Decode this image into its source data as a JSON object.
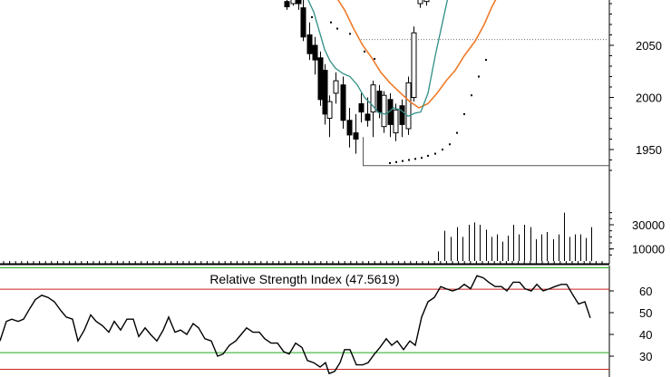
{
  "colors": {
    "background": "#ffffff",
    "candle_up": "#ffffff",
    "candle_down": "#000000",
    "ma_fast": "#2f8f86",
    "ma_slow": "#f07b2a",
    "rsi_line": "#000000",
    "rsi_upper_band": "#cc2222",
    "rsi_lower_band": "#22aa22",
    "rsi_border_band": "#22aa22"
  },
  "chart_data": [
    {
      "type": "candlestick",
      "panel": "price",
      "title": "",
      "ylim": [
        1920,
        2095
      ],
      "y_ticks": [
        1950,
        2000,
        2050
      ],
      "support_level": 1935,
      "dotted_levels": [
        2056,
        2095
      ],
      "candles": [
        {
          "o": 2092,
          "h": 2098,
          "l": 2084,
          "c": 2087
        },
        {
          "o": 2090,
          "h": 2098,
          "l": 2088,
          "c": 2096
        },
        {
          "o": 2094,
          "h": 2099,
          "l": 2084,
          "c": 2090
        },
        {
          "o": 2086,
          "h": 2096,
          "l": 2054,
          "c": 2058
        },
        {
          "o": 2060,
          "h": 2072,
          "l": 2036,
          "c": 2042
        },
        {
          "o": 2050,
          "h": 2058,
          "l": 2022,
          "c": 2036
        },
        {
          "o": 2038,
          "h": 2044,
          "l": 1992,
          "c": 1998
        },
        {
          "o": 2026,
          "h": 2032,
          "l": 1974,
          "c": 1984
        },
        {
          "o": 1980,
          "h": 2002,
          "l": 1962,
          "c": 1996
        },
        {
          "o": 2004,
          "h": 2024,
          "l": 1994,
          "c": 2016
        },
        {
          "o": 2012,
          "h": 2020,
          "l": 1970,
          "c": 1978
        },
        {
          "o": 1978,
          "h": 1990,
          "l": 1952,
          "c": 1964
        },
        {
          "o": 1966,
          "h": 1984,
          "l": 1946,
          "c": 1960
        },
        {
          "o": 1994,
          "h": 2004,
          "l": 1976,
          "c": 1986
        },
        {
          "o": 1984,
          "h": 2000,
          "l": 1972,
          "c": 1978
        },
        {
          "o": 1986,
          "h": 2016,
          "l": 1962,
          "c": 2012
        },
        {
          "o": 2006,
          "h": 2012,
          "l": 1980,
          "c": 1986
        },
        {
          "o": 1972,
          "h": 2006,
          "l": 1966,
          "c": 2002
        },
        {
          "o": 1998,
          "h": 2004,
          "l": 1962,
          "c": 1974
        },
        {
          "o": 1966,
          "h": 1994,
          "l": 1958,
          "c": 1988
        },
        {
          "o": 1992,
          "h": 1998,
          "l": 1962,
          "c": 1974
        },
        {
          "o": 1970,
          "h": 2020,
          "l": 1964,
          "c": 2014
        },
        {
          "o": 2000,
          "h": 2068,
          "l": 1996,
          "c": 2062
        },
        {
          "o": 2090,
          "h": 2102,
          "l": 2086,
          "c": 2098
        },
        {
          "o": 2092,
          "h": 2104,
          "l": 2088,
          "c": 2100
        }
      ],
      "ma_fast": [
        {
          "x": 339,
          "y": 2095
        },
        {
          "x": 346,
          "y": 2082
        },
        {
          "x": 352,
          "y": 2064
        },
        {
          "x": 358,
          "y": 2046
        },
        {
          "x": 364,
          "y": 2035
        },
        {
          "x": 370,
          "y": 2028
        },
        {
          "x": 378,
          "y": 2023
        },
        {
          "x": 386,
          "y": 2020
        },
        {
          "x": 394,
          "y": 2012
        },
        {
          "x": 402,
          "y": 2000
        },
        {
          "x": 410,
          "y": 1993
        },
        {
          "x": 418,
          "y": 1985
        },
        {
          "x": 426,
          "y": 1984
        },
        {
          "x": 434,
          "y": 1990
        },
        {
          "x": 442,
          "y": 1988
        },
        {
          "x": 450,
          "y": 1982
        },
        {
          "x": 458,
          "y": 1985
        },
        {
          "x": 464,
          "y": 1986
        },
        {
          "x": 472,
          "y": 2004
        },
        {
          "x": 480,
          "y": 2040
        },
        {
          "x": 488,
          "y": 2072
        },
        {
          "x": 494,
          "y": 2096
        }
      ],
      "ma_slow": [
        {
          "x": 371,
          "y": 2096
        },
        {
          "x": 380,
          "y": 2084
        },
        {
          "x": 390,
          "y": 2066
        },
        {
          "x": 400,
          "y": 2050
        },
        {
          "x": 410,
          "y": 2038
        },
        {
          "x": 420,
          "y": 2024
        },
        {
          "x": 430,
          "y": 2014
        },
        {
          "x": 442,
          "y": 2004
        },
        {
          "x": 452,
          "y": 1996
        },
        {
          "x": 462,
          "y": 1990
        },
        {
          "x": 472,
          "y": 1994
        },
        {
          "x": 482,
          "y": 2004
        },
        {
          "x": 492,
          "y": 2016
        },
        {
          "x": 502,
          "y": 2026
        },
        {
          "x": 512,
          "y": 2040
        },
        {
          "x": 524,
          "y": 2054
        },
        {
          "x": 534,
          "y": 2070
        },
        {
          "x": 542,
          "y": 2086
        },
        {
          "x": 548,
          "y": 2096
        }
      ],
      "parabolic_sar": [
        {
          "x": 333,
          "y": 2082
        },
        {
          "x": 344,
          "y": 2077
        },
        {
          "x": 365,
          "y": 2072
        },
        {
          "x": 372,
          "y": 2066
        },
        {
          "x": 386,
          "y": 2061
        },
        {
          "x": 402,
          "y": 2044
        },
        {
          "x": 413,
          "y": 2037
        },
        {
          "x": 430,
          "y": 1937
        },
        {
          "x": 437,
          "y": 1938
        },
        {
          "x": 444,
          "y": 1939
        },
        {
          "x": 451,
          "y": 1940
        },
        {
          "x": 458,
          "y": 1941
        },
        {
          "x": 465,
          "y": 1942
        },
        {
          "x": 472,
          "y": 1944
        },
        {
          "x": 480,
          "y": 1946
        },
        {
          "x": 488,
          "y": 1950
        },
        {
          "x": 496,
          "y": 1955
        },
        {
          "x": 504,
          "y": 1966
        },
        {
          "x": 512,
          "y": 1984
        },
        {
          "x": 520,
          "y": 2002
        },
        {
          "x": 528,
          "y": 2020
        },
        {
          "x": 536,
          "y": 2036
        }
      ]
    },
    {
      "type": "bar",
      "panel": "volume",
      "title": "",
      "ylim": [
        0,
        45000
      ],
      "y_ticks": [
        10000,
        30000
      ],
      "bars": [
        {
          "x": 483,
          "value": 8000
        },
        {
          "x": 490,
          "value": 25000
        },
        {
          "x": 497,
          "value": 20000
        },
        {
          "x": 504,
          "value": 28000
        },
        {
          "x": 510,
          "value": 20000
        },
        {
          "x": 517,
          "value": 30000
        },
        {
          "x": 523,
          "value": 32000
        },
        {
          "x": 529,
          "value": 30000
        },
        {
          "x": 536,
          "value": 26000
        },
        {
          "x": 542,
          "value": 20000
        },
        {
          "x": 548,
          "value": 22000
        },
        {
          "x": 554,
          "value": 16000
        },
        {
          "x": 560,
          "value": 21000
        },
        {
          "x": 566,
          "value": 30000
        },
        {
          "x": 572,
          "value": 22000
        },
        {
          "x": 578,
          "value": 30000
        },
        {
          "x": 585,
          "value": 28000
        },
        {
          "x": 591,
          "value": 18000
        },
        {
          "x": 597,
          "value": 22000
        },
        {
          "x": 603,
          "value": 24000
        },
        {
          "x": 610,
          "value": 18000
        },
        {
          "x": 616,
          "value": 22000
        },
        {
          "x": 622,
          "value": 40000
        },
        {
          "x": 628,
          "value": 20000
        },
        {
          "x": 634,
          "value": 22000
        },
        {
          "x": 640,
          "value": 22000
        },
        {
          "x": 646,
          "value": 19000
        },
        {
          "x": 652,
          "value": 28000
        }
      ]
    },
    {
      "type": "line",
      "panel": "rsi",
      "title": "Relative Strength Index (47.5619)",
      "ylim": [
        18,
        72
      ],
      "y_ticks": [
        30,
        40,
        50,
        60
      ],
      "bands": [
        31.8,
        61.0
      ],
      "series": [
        {
          "name": "",
          "points": [
            {
              "x": 0,
              "y": 37
            },
            {
              "x": 7,
              "y": 46
            },
            {
              "x": 13,
              "y": 47
            },
            {
              "x": 20,
              "y": 46
            },
            {
              "x": 26,
              "y": 47
            },
            {
              "x": 33,
              "y": 52
            },
            {
              "x": 39,
              "y": 56
            },
            {
              "x": 46,
              "y": 58
            },
            {
              "x": 53,
              "y": 57
            },
            {
              "x": 60,
              "y": 55
            },
            {
              "x": 67,
              "y": 51
            },
            {
              "x": 73,
              "y": 48
            },
            {
              "x": 80,
              "y": 47
            },
            {
              "x": 86,
              "y": 37
            },
            {
              "x": 93,
              "y": 42
            },
            {
              "x": 100,
              "y": 49
            },
            {
              "x": 106,
              "y": 46
            },
            {
              "x": 113,
              "y": 44
            },
            {
              "x": 120,
              "y": 41
            },
            {
              "x": 126,
              "y": 46
            },
            {
              "x": 133,
              "y": 42
            },
            {
              "x": 140,
              "y": 47
            },
            {
              "x": 147,
              "y": 47
            },
            {
              "x": 153,
              "y": 39
            },
            {
              "x": 160,
              "y": 43
            },
            {
              "x": 166,
              "y": 40
            },
            {
              "x": 173,
              "y": 37
            },
            {
              "x": 180,
              "y": 42
            },
            {
              "x": 186,
              "y": 48
            },
            {
              "x": 193,
              "y": 41
            },
            {
              "x": 199,
              "y": 42
            },
            {
              "x": 206,
              "y": 40
            },
            {
              "x": 213,
              "y": 45
            },
            {
              "x": 219,
              "y": 43
            },
            {
              "x": 226,
              "y": 38
            },
            {
              "x": 233,
              "y": 37
            },
            {
              "x": 240,
              "y": 30
            },
            {
              "x": 246,
              "y": 31
            },
            {
              "x": 253,
              "y": 35
            },
            {
              "x": 260,
              "y": 37
            },
            {
              "x": 266,
              "y": 40
            },
            {
              "x": 272,
              "y": 43
            },
            {
              "x": 279,
              "y": 41
            },
            {
              "x": 286,
              "y": 41
            },
            {
              "x": 292,
              "y": 38
            },
            {
              "x": 299,
              "y": 36
            },
            {
              "x": 306,
              "y": 36
            },
            {
              "x": 313,
              "y": 32
            },
            {
              "x": 319,
              "y": 31
            },
            {
              "x": 326,
              "y": 36
            },
            {
              "x": 333,
              "y": 34
            },
            {
              "x": 339,
              "y": 28
            },
            {
              "x": 346,
              "y": 27
            },
            {
              "x": 353,
              "y": 25
            },
            {
              "x": 359,
              "y": 27
            },
            {
              "x": 363,
              "y": 22
            },
            {
              "x": 369,
              "y": 23
            },
            {
              "x": 375,
              "y": 27
            },
            {
              "x": 380,
              "y": 33
            },
            {
              "x": 386,
              "y": 33
            },
            {
              "x": 393,
              "y": 26
            },
            {
              "x": 400,
              "y": 26
            },
            {
              "x": 406,
              "y": 27
            },
            {
              "x": 413,
              "y": 31
            },
            {
              "x": 419,
              "y": 34
            },
            {
              "x": 426,
              "y": 38
            },
            {
              "x": 432,
              "y": 35
            },
            {
              "x": 438,
              "y": 37
            },
            {
              "x": 445,
              "y": 33
            },
            {
              "x": 452,
              "y": 37
            },
            {
              "x": 458,
              "y": 35
            },
            {
              "x": 465,
              "y": 48
            },
            {
              "x": 472,
              "y": 55
            },
            {
              "x": 479,
              "y": 57
            },
            {
              "x": 486,
              "y": 62
            },
            {
              "x": 492,
              "y": 61
            },
            {
              "x": 499,
              "y": 60
            },
            {
              "x": 506,
              "y": 61
            },
            {
              "x": 512,
              "y": 63
            },
            {
              "x": 519,
              "y": 61
            },
            {
              "x": 526,
              "y": 67
            },
            {
              "x": 533,
              "y": 66
            },
            {
              "x": 539,
              "y": 64
            },
            {
              "x": 546,
              "y": 62
            },
            {
              "x": 553,
              "y": 62
            },
            {
              "x": 559,
              "y": 60
            },
            {
              "x": 566,
              "y": 64
            },
            {
              "x": 573,
              "y": 64
            },
            {
              "x": 579,
              "y": 61
            },
            {
              "x": 586,
              "y": 60
            },
            {
              "x": 592,
              "y": 63
            },
            {
              "x": 599,
              "y": 60
            },
            {
              "x": 606,
              "y": 61
            },
            {
              "x": 612,
              "y": 62
            },
            {
              "x": 619,
              "y": 63
            },
            {
              "x": 625,
              "y": 63
            },
            {
              "x": 632,
              "y": 58
            },
            {
              "x": 638,
              "y": 54
            },
            {
              "x": 645,
              "y": 55
            },
            {
              "x": 651,
              "y": 47.6
            }
          ]
        }
      ]
    }
  ]
}
